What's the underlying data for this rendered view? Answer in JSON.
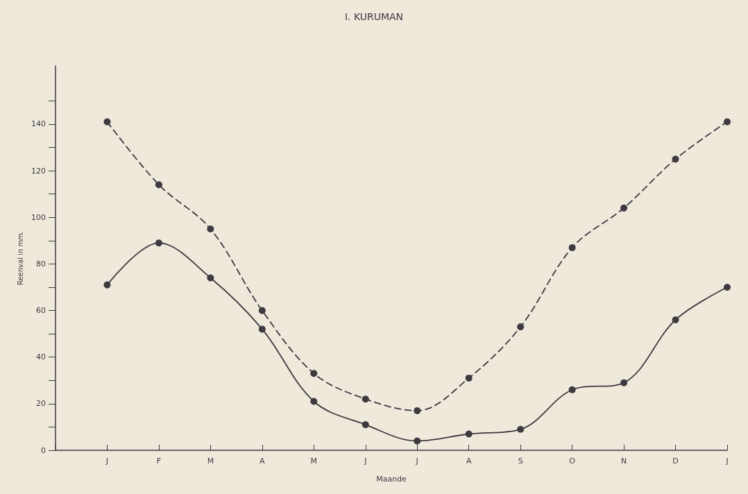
{
  "chart_data": {
    "type": "line",
    "title": "I. KURUMAN",
    "xlabel": "Maande",
    "ylabel": "Reenval in mm.",
    "categories": [
      null,
      "J",
      "F",
      "M",
      "A",
      "M",
      "J",
      "J",
      "A",
      "S",
      "O",
      "N",
      "D",
      "J"
    ],
    "series": [
      {
        "color": "#3d3a40",
        "line_style": "dashed",
        "values": [
          null,
          141,
          114,
          95,
          60,
          33,
          22,
          17,
          31,
          53,
          87,
          104,
          125,
          141
        ]
      },
      {
        "color": "#3d3a40",
        "line_style": "solid",
        "values": [
          null,
          71,
          89,
          74,
          52,
          21,
          11,
          4,
          7,
          9,
          26,
          29,
          56,
          70
        ]
      }
    ],
    "ylim": [
      0,
      165
    ],
    "yticks": [
      0,
      {
        "value": 10,
        "label": null
      },
      20,
      {
        "value": 30,
        "label": null
      },
      40,
      {
        "value": 50,
        "label": null
      },
      60,
      {
        "value": 70,
        "label": null
      },
      80,
      {
        "value": 90,
        "label": null
      },
      100,
      {
        "value": 110,
        "label": null
      },
      120,
      {
        "value": 130,
        "label": null
      },
      140,
      {
        "value": 150,
        "label": null
      }
    ],
    "grid": false,
    "marker": "circle"
  }
}
